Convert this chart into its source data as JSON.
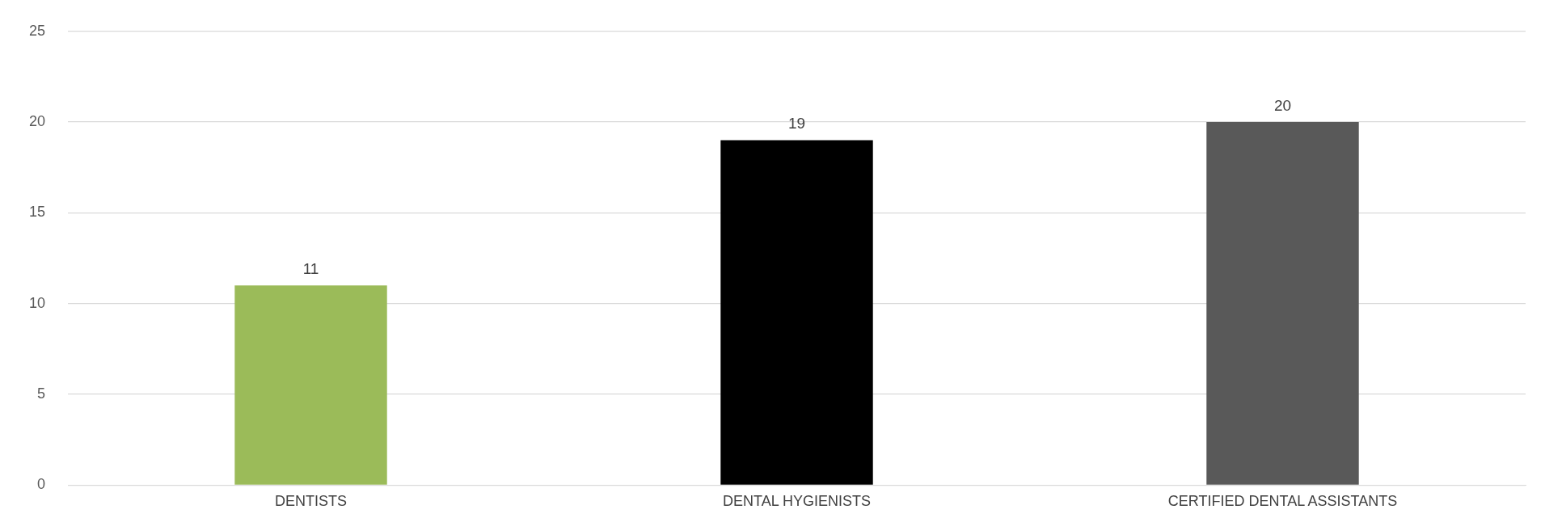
{
  "chart_data": {
    "type": "bar",
    "categories": [
      "DENTISTS",
      "DENTAL HYGIENISTS",
      "CERTIFIED DENTAL ASSISTANTS"
    ],
    "values": [
      11,
      19,
      20
    ],
    "colors": [
      "#9bbb59",
      "#000000",
      "#595959"
    ],
    "ylim": [
      0,
      25
    ],
    "yticks": [
      0,
      5,
      10,
      15,
      20,
      25
    ],
    "grid": "y",
    "legend": false,
    "data_labels": true
  }
}
